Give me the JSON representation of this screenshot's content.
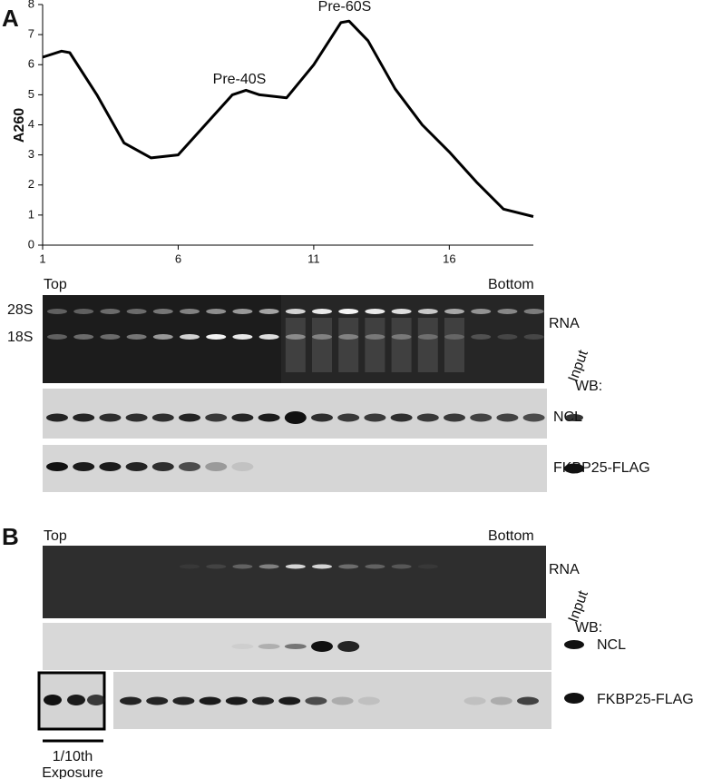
{
  "chart_data": {
    "type": "line",
    "ylabel": "A260",
    "x": [
      1,
      1.7,
      2,
      3,
      4,
      5,
      6,
      7,
      8,
      8.5,
      9,
      10,
      11,
      12,
      12.3,
      13,
      14,
      15,
      16,
      17,
      18,
      19.1
    ],
    "values": [
      6.25,
      6.45,
      6.4,
      5.0,
      3.4,
      2.9,
      3.0,
      4.0,
      5.0,
      5.15,
      5.0,
      4.9,
      6.0,
      7.4,
      7.45,
      6.8,
      5.2,
      4.0,
      3.1,
      2.1,
      1.2,
      0.95
    ],
    "color": "#000000",
    "xlim": [
      1,
      19.1
    ],
    "xticks": [
      1,
      6,
      11,
      16
    ],
    "ylim": [
      0,
      8
    ],
    "yticks": [
      0,
      1,
      2,
      3,
      4,
      5,
      6,
      7,
      8
    ],
    "annotations": [
      "Pre-40S",
      "Pre-60S"
    ]
  },
  "panel_a": {
    "label": "A",
    "top": "Top",
    "bottom": "Bottom",
    "rrna_28s": "28S",
    "rrna_18s": "18S",
    "rna": "RNA",
    "input": "Input",
    "wb": "WB:",
    "ncl": "NCL",
    "flag": "FKBP25-FLAG"
  },
  "panel_b": {
    "label": "B",
    "top": "Top",
    "bottom": "Bottom",
    "rna": "RNA",
    "input": "Input",
    "wb": "WB:",
    "ncl": "NCL",
    "flag": "FKBP25-FLAG",
    "exposure_1": "1/10th",
    "exposure_2": "Exposure"
  }
}
